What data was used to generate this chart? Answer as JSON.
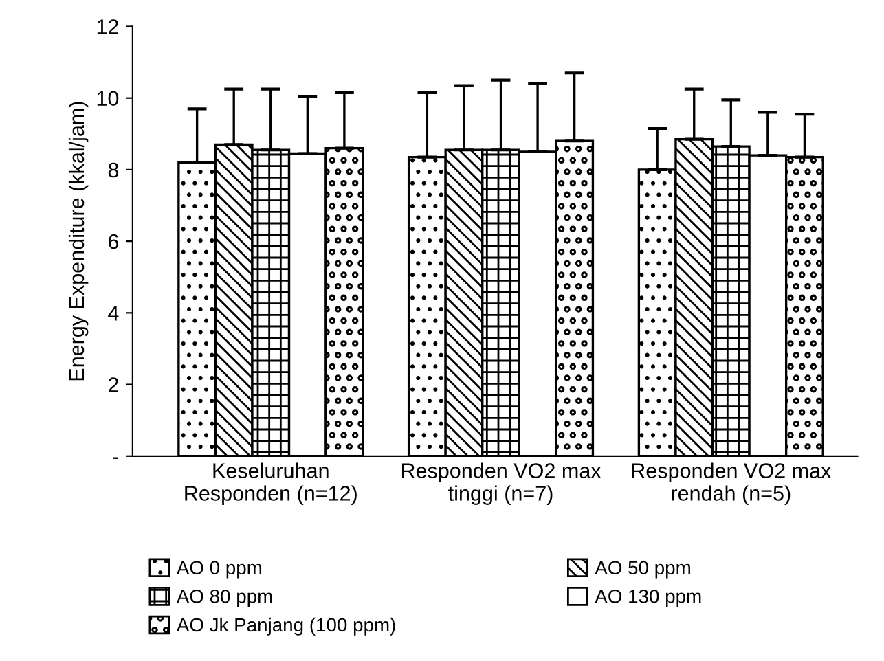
{
  "chart_data": {
    "type": "bar",
    "ylabel": "Energy Expenditure (kkal/jam)",
    "categories": [
      "Keseluruhan\nResponden (n=12)",
      "Responden VO2 max\ntinggi (n=7)",
      "Responden VO2 max\nrendah (n=5)"
    ],
    "series": [
      {
        "name": "AO 0 ppm",
        "color": "#000000",
        "values": [
          8.2,
          8.35,
          8.0
        ],
        "errors": [
          [
            8.2,
            9.7
          ],
          [
            8.35,
            10.15
          ],
          [
            8.0,
            9.15
          ]
        ]
      },
      {
        "name": "AO 50 ppm",
        "color": "#000000",
        "values": [
          8.7,
          8.55,
          8.85
        ],
        "errors": [
          [
            8.7,
            10.25
          ],
          [
            8.55,
            10.35
          ],
          [
            8.85,
            10.25
          ]
        ]
      },
      {
        "name": "AO 80 ppm",
        "color": "#000000",
        "values": [
          8.55,
          8.55,
          8.65
        ],
        "errors": [
          [
            8.55,
            10.25
          ],
          [
            8.55,
            10.5
          ],
          [
            8.65,
            9.95
          ]
        ]
      },
      {
        "name": "AO 130 ppm",
        "color": "#000000",
        "values": [
          8.45,
          8.5,
          8.4
        ],
        "errors": [
          [
            8.45,
            10.05
          ],
          [
            8.5,
            10.4
          ],
          [
            8.4,
            9.6
          ]
        ]
      },
      {
        "name": "AO Jk Panjang (100 ppm)",
        "color": "#000000",
        "values": [
          8.6,
          8.8,
          8.35
        ],
        "errors": [
          [
            8.6,
            10.15
          ],
          [
            8.8,
            10.7
          ],
          [
            8.35,
            9.55
          ]
        ]
      }
    ],
    "ylim": [
      0,
      12
    ],
    "yticks": [
      {
        "value": 0,
        "label": "-"
      },
      2,
      4,
      6,
      8,
      10,
      12
    ],
    "grid": false,
    "legend": "bottom"
  }
}
